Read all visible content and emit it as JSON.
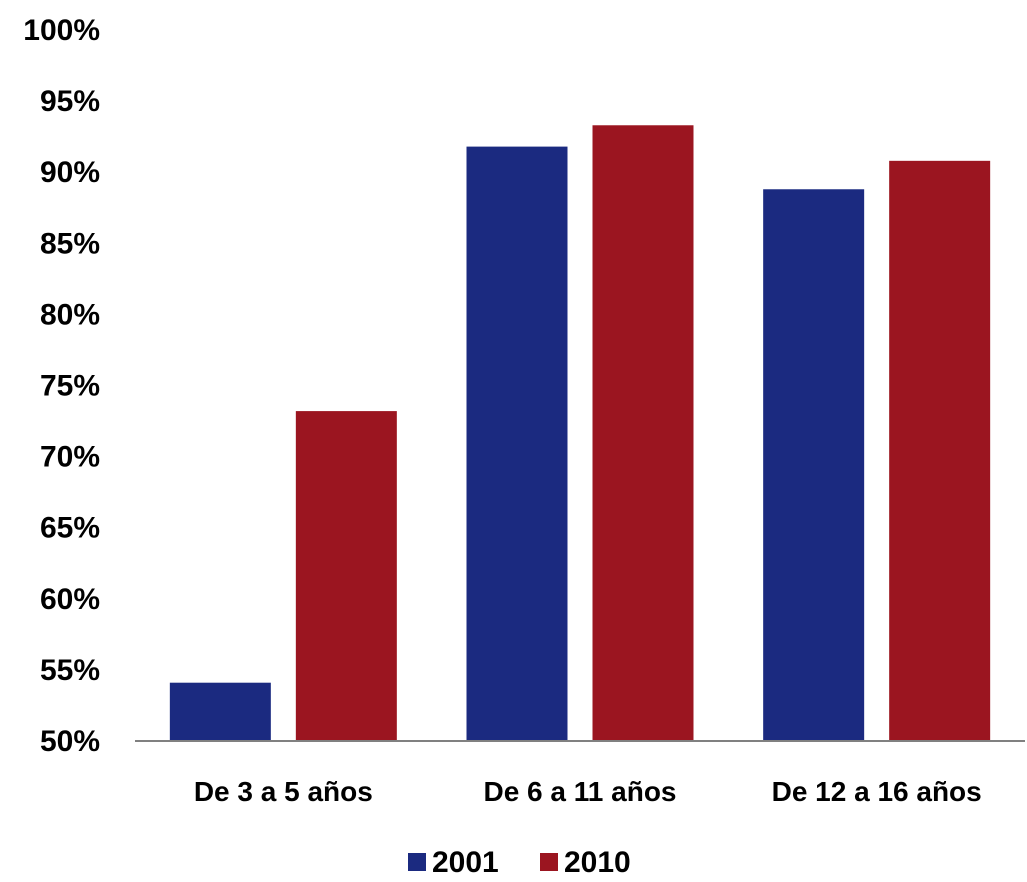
{
  "chart_data": {
    "type": "bar",
    "title": "",
    "xlabel": "",
    "ylabel": "",
    "categories": [
      "De 3 a 5 años",
      "De 6 a 11 años",
      "De 12 a 16 años"
    ],
    "series": [
      {
        "name": "2001",
        "color": "#1b2a80",
        "values": [
          54.1,
          91.8,
          88.8
        ]
      },
      {
        "name": "2010",
        "color": "#9b1520",
        "values": [
          73.2,
          93.3,
          90.8
        ]
      }
    ],
    "ylim": [
      50,
      100
    ],
    "yticks": [
      50,
      55,
      60,
      65,
      70,
      75,
      80,
      85,
      90,
      95,
      100
    ],
    "ytick_labels": [
      "50%",
      "55%",
      "60%",
      "65%",
      "70%",
      "75%",
      "80%",
      "85%",
      "90%",
      "95%",
      "100%"
    ],
    "grid": false,
    "legend": "bottom"
  }
}
